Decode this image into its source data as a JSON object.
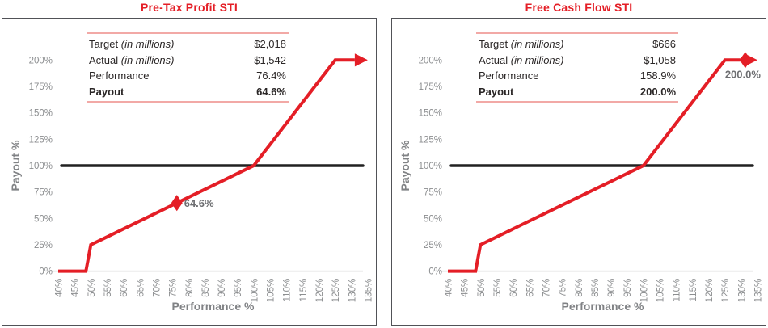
{
  "colors": {
    "accent_red": "#e41e26",
    "table_rule_pink": "#f2a9a6",
    "axis_text_gray": "#8c8e90",
    "axis_title_gray": "#808285",
    "table_text": "#2a2626",
    "reference_line_black": "#212121",
    "zero_baseline_gray": "#d9d9d9",
    "panel_border_gray": "#515257",
    "marker_label_gray": "#6d6e71"
  },
  "chart_data": [
    {
      "type": "line",
      "title": "Pre-Tax Profit STI",
      "xlabel": "Performance %",
      "ylabel": "Payout %",
      "xlim": [
        40,
        135
      ],
      "ylim": [
        0,
        200
      ],
      "x_ticks": [
        40,
        45,
        50,
        55,
        60,
        65,
        70,
        75,
        80,
        85,
        90,
        95,
        100,
        105,
        110,
        115,
        120,
        125,
        130,
        135
      ],
      "y_ticks": [
        0,
        25,
        50,
        75,
        100,
        125,
        150,
        175,
        200
      ],
      "grid": false,
      "reference_line_y": 100,
      "series": [
        {
          "name": "Payout curve",
          "points": [
            [
              40,
              0
            ],
            [
              48.5,
              0
            ],
            [
              50,
              25
            ],
            [
              100,
              100
            ],
            [
              125,
              200
            ],
            [
              131,
              200
            ]
          ],
          "arrow_end": true
        }
      ],
      "marker": {
        "x": 76.4,
        "y": 64.6,
        "label": "64.6%",
        "label_pos": "right",
        "on_arrow": false
      },
      "table": {
        "rows": [
          {
            "label": "Target",
            "note": "(in millions)",
            "value": "$2,018",
            "bold": false
          },
          {
            "label": "Actual",
            "note": "(in millions)",
            "value": "$1,542",
            "bold": false
          },
          {
            "label": "Performance",
            "note": "",
            "value": "76.4%",
            "bold": false
          },
          {
            "label": "Payout",
            "note": "",
            "value": "64.6%",
            "bold": true
          }
        ]
      }
    },
    {
      "type": "line",
      "title": "Free Cash Flow STI",
      "xlabel": "Performance %",
      "ylabel": "Payout %",
      "xlim": [
        40,
        135
      ],
      "ylim": [
        0,
        200
      ],
      "x_ticks": [
        40,
        45,
        50,
        55,
        60,
        65,
        70,
        75,
        80,
        85,
        90,
        95,
        100,
        105,
        110,
        115,
        120,
        125,
        130,
        135
      ],
      "y_ticks": [
        0,
        25,
        50,
        75,
        100,
        125,
        150,
        175,
        200
      ],
      "grid": false,
      "reference_line_y": 100,
      "series": [
        {
          "name": "Payout curve",
          "points": [
            [
              40,
              0
            ],
            [
              48.5,
              0
            ],
            [
              50,
              25
            ],
            [
              100,
              100
            ],
            [
              125,
              200
            ],
            [
              131,
              200
            ]
          ],
          "arrow_end": true
        }
      ],
      "marker": {
        "x": 131,
        "y": 200,
        "label": "200.0%",
        "label_pos": "below-left",
        "on_arrow": true
      },
      "table": {
        "rows": [
          {
            "label": "Target",
            "note": "(in millions)",
            "value": "$666",
            "bold": false
          },
          {
            "label": "Actual",
            "note": "(in millions)",
            "value": "$1,058",
            "bold": false
          },
          {
            "label": "Performance",
            "note": "",
            "value": "158.9%",
            "bold": false
          },
          {
            "label": "Payout",
            "note": "",
            "value": "200.0%",
            "bold": true
          }
        ]
      }
    }
  ]
}
